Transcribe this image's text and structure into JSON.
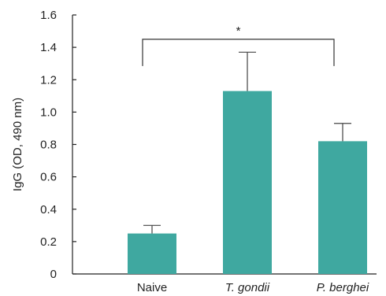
{
  "chart_data": {
    "type": "bar",
    "categories": [
      "Naive",
      "T. gondii",
      "P. berghei"
    ],
    "category_italic": [
      false,
      true,
      true
    ],
    "values": [
      0.25,
      1.13,
      0.82
    ],
    "errors": [
      0.05,
      0.24,
      0.11
    ],
    "title": "",
    "xlabel": "",
    "ylabel": "IgG (OD, 490 nm)",
    "ylim": [
      0,
      1.6
    ],
    "yticks": [
      0,
      0.2,
      0.4,
      0.6,
      0.8,
      1.0,
      1.2,
      1.4,
      1.6
    ],
    "ytick_labels": [
      "0",
      "0.2",
      "0.4",
      "0.6",
      "0.8",
      "1.0",
      "1.2",
      "1.4",
      "1.6"
    ],
    "grid": false,
    "bar_color": "#3fa8a0",
    "significance": {
      "label": "*",
      "from_category": "Naive",
      "to_category": "P. berghei",
      "at_value": 1.45
    }
  }
}
